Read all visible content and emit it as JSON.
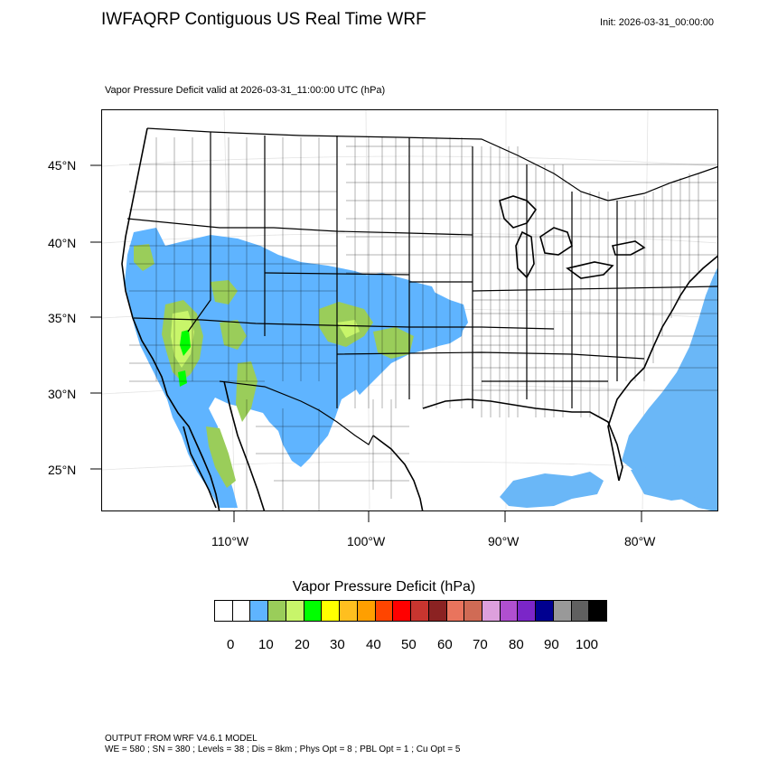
{
  "title": "IWFAQRP Contiguous US Real Time WRF",
  "init_label": "Init: 2026-03-31_00:00:00",
  "subtitle": "Vapor Pressure Deficit valid at 2026-03-31_11:00:00 UTC   (hPa)",
  "map": {
    "lat_labels": [
      "45°N",
      "40°N",
      "35°N",
      "30°N",
      "25°N"
    ],
    "lon_labels": [
      "110°W",
      "100°W",
      "90°W",
      "80°W"
    ],
    "colors": {
      "vpd_0_10": "#ffffff",
      "vpd_10_15": "#5fb4ff",
      "vpd_15_20": "#9acd5a",
      "vpd_20_25": "#c8f56a",
      "vpd_25_30": "#00ff00",
      "ocean_dry": "#6ab7f7"
    }
  },
  "legend": {
    "title": "Vapor Pressure Deficit  (hPa)",
    "colors": [
      "#ffffff",
      "#ffffff",
      "#5fb4ff",
      "#9acd5a",
      "#c8f56a",
      "#00ff00",
      "#ffff00",
      "#ffbf1f",
      "#ff9f00",
      "#ff4500",
      "#ff0000",
      "#c8352f",
      "#8b2222",
      "#e9745d",
      "#d06b55",
      "#dda0dd",
      "#b04fd0",
      "#7b26c8",
      "#000090",
      "#999999",
      "#606060",
      "#000000"
    ],
    "tick_labels": [
      "0",
      "10",
      "20",
      "30",
      "40",
      "50",
      "60",
      "70",
      "80",
      "90",
      "100"
    ]
  },
  "footer": {
    "line1": "OUTPUT FROM WRF V4.6.1 MODEL",
    "line2": "WE = 580 ; SN = 380 ; Levels = 38 ; Dis = 8km ; Phys Opt = 8 ; PBL Opt = 1 ; Cu Opt = 5"
  }
}
